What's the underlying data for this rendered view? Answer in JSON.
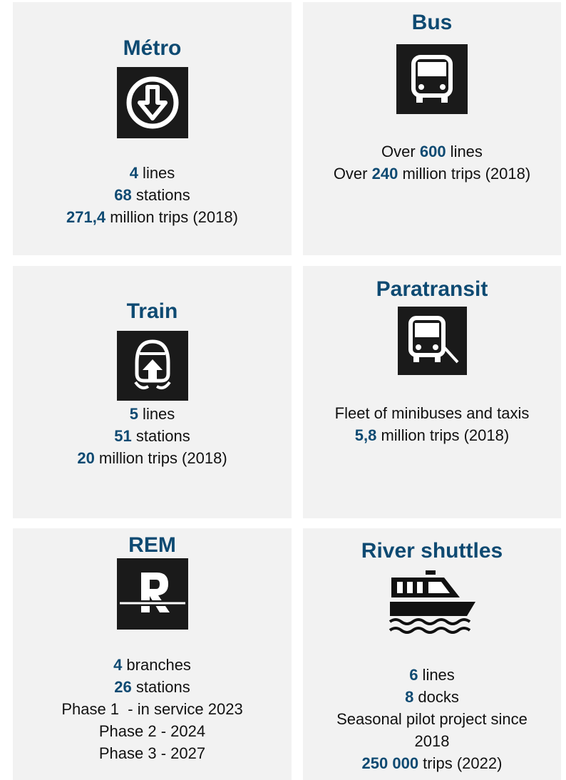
{
  "cards": [
    {
      "title": "Métro",
      "lines": [
        [
          {
            "strong": "4"
          },
          {
            "text": " lines"
          }
        ],
        [
          {
            "strong": "68"
          },
          {
            "text": " stations"
          }
        ],
        [
          {
            "strong": "271,4"
          },
          {
            "text": " million trips (2018)"
          }
        ]
      ]
    },
    {
      "title": "Bus",
      "lines": [
        [
          {
            "text": "Over "
          },
          {
            "strong": "600"
          },
          {
            "text": " lines"
          }
        ],
        [
          {
            "text": "Over "
          },
          {
            "strong": "240"
          },
          {
            "text": " million trips (2018)"
          }
        ]
      ]
    },
    {
      "title": "Train",
      "lines": [
        [
          {
            "strong": "5"
          },
          {
            "text": " lines"
          }
        ],
        [
          {
            "strong": "51"
          },
          {
            "text": " stations"
          }
        ],
        [
          {
            "strong": "20"
          },
          {
            "text": " million trips (2018)"
          }
        ]
      ]
    },
    {
      "title": "Paratransit",
      "lines": [
        [
          {
            "text": "Fleet of minibuses and taxis"
          }
        ],
        [
          {
            "strong": "5,8"
          },
          {
            "text": " million trips (2018)"
          }
        ]
      ]
    },
    {
      "title": "REM",
      "lines": [
        [
          {
            "strong": "4"
          },
          {
            "text": " branches"
          }
        ],
        [
          {
            "strong": "26"
          },
          {
            "text": " stations"
          }
        ],
        [
          {
            "text": "Phase 1  - in service 2023"
          }
        ],
        [
          {
            "text": "Phase 2 - 2024"
          }
        ],
        [
          {
            "text": "Phase 3 - 2027"
          }
        ]
      ]
    },
    {
      "title": "River shuttles",
      "lines": [
        [
          {
            "strong": "6"
          },
          {
            "text": " lines"
          }
        ],
        [
          {
            "strong": "8"
          },
          {
            "text": " docks"
          }
        ],
        [
          {
            "text": "Seasonal pilot project since"
          }
        ],
        [
          {
            "text": "2018"
          }
        ],
        [
          {
            "strong": "250 000"
          },
          {
            "text": " trips (2022)"
          }
        ]
      ]
    }
  ]
}
